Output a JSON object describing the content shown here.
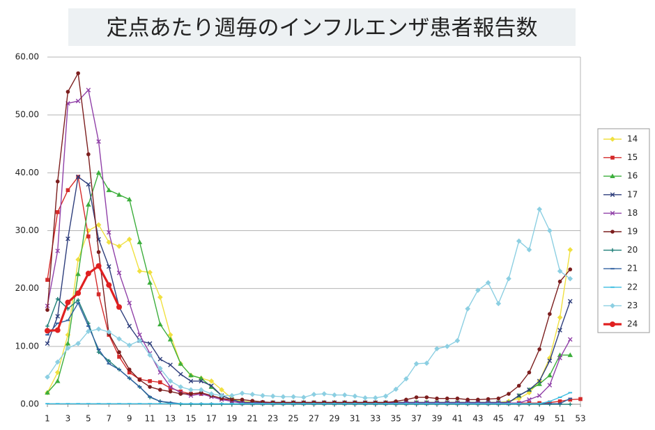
{
  "chart_data": {
    "type": "line",
    "title": "定点あたり週毎のインフルエンザ患者報告数",
    "x": [
      1,
      2,
      3,
      4,
      5,
      6,
      7,
      8,
      9,
      10,
      11,
      12,
      13,
      14,
      15,
      16,
      17,
      18,
      19,
      20,
      21,
      22,
      23,
      24,
      25,
      26,
      27,
      28,
      29,
      30,
      31,
      32,
      33,
      34,
      35,
      36,
      37,
      38,
      39,
      40,
      41,
      42,
      43,
      44,
      45,
      46,
      47,
      48,
      49,
      50,
      51,
      52,
      53
    ],
    "xlim": [
      1,
      53
    ],
    "xticks": [
      1,
      3,
      5,
      7,
      9,
      11,
      13,
      15,
      17,
      19,
      21,
      23,
      25,
      27,
      29,
      31,
      33,
      35,
      37,
      39,
      41,
      43,
      45,
      47,
      49,
      51,
      53
    ],
    "ylim": [
      0,
      60
    ],
    "yticks": [
      {
        "value": 0,
        "label": "0.00"
      },
      {
        "value": 10,
        "label": "10.00"
      },
      {
        "value": 20,
        "label": "20.00"
      },
      {
        "value": 30,
        "label": "30.00"
      },
      {
        "value": 40,
        "label": "40.00"
      },
      {
        "value": 50,
        "label": "50.00"
      },
      {
        "value": 60,
        "label": "60.00"
      }
    ],
    "grid": true,
    "legend": "right",
    "series": [
      {
        "name": "14",
        "color": "#f0e040",
        "marker": "diamond",
        "values": [
          2,
          5.5,
          12,
          25,
          30,
          31,
          28,
          27.3,
          28.5,
          23,
          22.8,
          18.5,
          12,
          7,
          5,
          4.5,
          4,
          2.5,
          1,
          0.5,
          0.4,
          0.3,
          0.3,
          0.3,
          0.3,
          0.3,
          0.3,
          0.3,
          0.3,
          0.3,
          0.3,
          0.3,
          0.3,
          0.3,
          0.3,
          0.3,
          0.3,
          0.3,
          0.3,
          0.3,
          0.3,
          0.3,
          0.3,
          0.3,
          0.3,
          0.5,
          1,
          2,
          4,
          8,
          15,
          26.7,
          null
        ]
      },
      {
        "name": "15",
        "color": "#d42a2a",
        "marker": "square",
        "values": [
          21.5,
          33.2,
          37,
          39.3,
          29,
          19,
          12,
          8.2,
          5.5,
          4.3,
          4,
          3.8,
          2.8,
          2.2,
          1.8,
          1.8,
          1.5,
          1,
          0.5,
          0.2,
          0.2,
          0.2,
          0.2,
          0.2,
          0.2,
          0.2,
          0.2,
          0.2,
          0.2,
          0.2,
          0.2,
          0.2,
          0.2,
          0.2,
          0.2,
          0.2,
          0.2,
          0.2,
          0.2,
          0.2,
          0.2,
          0.2,
          0.2,
          0.2,
          0.2,
          0.2,
          0.2,
          0.2,
          0.2,
          0.3,
          0.5,
          0.8,
          0.9
        ]
      },
      {
        "name": "16",
        "color": "#3cae3c",
        "marker": "triangle",
        "values": [
          2,
          4,
          10.5,
          22.5,
          34.5,
          40,
          37,
          36.2,
          35.4,
          28,
          21,
          13.8,
          11.2,
          7,
          5,
          4.5,
          3,
          1.5,
          0.8,
          0.3,
          0.3,
          0.3,
          0.3,
          0.3,
          0.3,
          0.3,
          0.3,
          0.3,
          0.3,
          0.3,
          0.3,
          0.3,
          0.3,
          0.3,
          0.3,
          0.3,
          0.3,
          0.3,
          0.3,
          0.3,
          0.3,
          0.3,
          0.3,
          0.3,
          0.3,
          0.3,
          1.5,
          2.5,
          3.5,
          5,
          8.5,
          8.5,
          null
        ]
      },
      {
        "name": "17",
        "color": "#2e3e7c",
        "marker": "x",
        "values": [
          10.5,
          15.2,
          28.6,
          39.3,
          38,
          28.5,
          23.8,
          16.8,
          13.5,
          11,
          10.5,
          7.8,
          6.8,
          5.2,
          4,
          4,
          3.2,
          1.5,
          0.8,
          0.3,
          0.3,
          0.3,
          0.3,
          0.3,
          0.3,
          0.3,
          0.3,
          0.3,
          0.3,
          0.3,
          0.3,
          0.3,
          0.3,
          0.3,
          0.3,
          0.3,
          0.3,
          0.3,
          0.3,
          0.3,
          0.3,
          0.3,
          0.3,
          0.3,
          0.3,
          0.3,
          1.5,
          2.5,
          4,
          7.5,
          12.8,
          17.8,
          null
        ]
      },
      {
        "name": "18",
        "color": "#9040a8",
        "marker": "x",
        "values": [
          17,
          26.5,
          52,
          52.4,
          54.3,
          45.4,
          29.7,
          22.7,
          17.5,
          12,
          8.8,
          5.5,
          3,
          2,
          1.5,
          1.8,
          1.3,
          0.8,
          0.5,
          0.2,
          0.2,
          0.2,
          0.2,
          0.2,
          0.2,
          0.2,
          0.2,
          0.2,
          0.2,
          0.2,
          0.2,
          0.2,
          0.2,
          0.2,
          0.2,
          0.2,
          0.2,
          0.2,
          0.2,
          0.2,
          0.2,
          0.2,
          0.2,
          0.2,
          0.2,
          0.2,
          0.2,
          0.8,
          1.5,
          3.3,
          8,
          11.2,
          null
        ]
      },
      {
        "name": "19",
        "color": "#7c1e1e",
        "marker": "circle",
        "values": [
          16.3,
          38.5,
          54,
          57.2,
          43.2,
          26.3,
          12.2,
          9,
          6,
          4.2,
          3,
          2.5,
          2.2,
          1.8,
          1.8,
          2,
          1.5,
          1,
          0.8,
          0.8,
          0.6,
          0.4,
          0.3,
          0.3,
          0.3,
          0.3,
          0.3,
          0.3,
          0.3,
          0.3,
          0.3,
          0.3,
          0.3,
          0.3,
          0.5,
          0.8,
          1.2,
          1.2,
          1,
          1,
          1,
          0.8,
          0.8,
          0.9,
          1,
          1.8,
          3.2,
          5.5,
          9.5,
          15.6,
          21.2,
          23.3,
          null
        ]
      },
      {
        "name": "20",
        "color": "#1f7f78",
        "marker": "plus",
        "values": [
          13.5,
          18.2,
          16.5,
          18,
          14,
          9,
          7.5,
          6,
          4.5,
          3,
          1.2,
          0.5,
          0.2,
          0,
          0,
          0,
          0,
          0,
          0,
          0,
          0,
          0,
          0,
          0,
          0,
          0,
          0,
          0,
          0,
          0,
          0,
          0,
          0,
          0,
          0,
          0,
          0,
          0,
          0,
          0,
          0,
          0,
          0,
          0,
          0,
          0,
          0,
          0,
          0,
          0,
          0,
          0,
          null
        ]
      },
      {
        "name": "21",
        "color": "#3060a0",
        "marker": "dash",
        "values": [
          12,
          14,
          14.5,
          17.5,
          13.5,
          9.5,
          7,
          6,
          4.5,
          3,
          1.3,
          0.5,
          0.3,
          0.1,
          0.1,
          0.1,
          0.1,
          0.1,
          0.1,
          0.1,
          0.1,
          0.1,
          0.1,
          0.1,
          0.1,
          0.1,
          0.1,
          0.1,
          0.1,
          0.1,
          0.1,
          0.1,
          0.1,
          0.1,
          0.1,
          0.1,
          0.1,
          0.1,
          0.1,
          0.1,
          0.1,
          0.1,
          0.1,
          0.1,
          0.1,
          0.1,
          0.1,
          0.1,
          0.1,
          0.1,
          0.1,
          1,
          null
        ]
      },
      {
        "name": "22",
        "color": "#3cbce0",
        "marker": "dash",
        "values": [
          0.1,
          0.1,
          0.1,
          0.1,
          0.1,
          0.1,
          0.1,
          0.1,
          0.1,
          0.1,
          0.1,
          0.1,
          0.1,
          0.1,
          0.1,
          0.1,
          0.1,
          0.1,
          0.1,
          0.1,
          0.1,
          0.1,
          0.1,
          0.1,
          0.1,
          0.1,
          0.1,
          0.1,
          0.1,
          0.1,
          0.1,
          0.1,
          0.1,
          0.1,
          0.1,
          0.1,
          0.1,
          0.1,
          0.1,
          0.1,
          0.1,
          0.1,
          0.1,
          0.1,
          0.1,
          0.1,
          0.1,
          0.1,
          0.1,
          0.5,
          1.2,
          2,
          null
        ]
      },
      {
        "name": "23",
        "color": "#8ccfe2",
        "marker": "diamond",
        "values": [
          4.7,
          7.3,
          9.7,
          10.5,
          12.6,
          13,
          12.5,
          11.3,
          10.2,
          11,
          8.5,
          6.2,
          4,
          3,
          2.5,
          2.5,
          1.8,
          1.5,
          1.5,
          1.9,
          1.7,
          1.5,
          1.4,
          1.3,
          1.3,
          1.2,
          1.7,
          1.8,
          1.6,
          1.6,
          1.4,
          1.1,
          1.1,
          1.4,
          2.6,
          4.4,
          7,
          7.1,
          9.6,
          10,
          11,
          16.5,
          19.7,
          21,
          17.4,
          21.7,
          28.2,
          26.7,
          33.7,
          30,
          23,
          21.7,
          null
        ]
      },
      {
        "name": "24",
        "color": "#e02020",
        "marker": "circle",
        "bold": true,
        "values": [
          12.7,
          12.8,
          17.6,
          19.2,
          22.6,
          23.9,
          20.6,
          16.8,
          null,
          null,
          null,
          null,
          null,
          null,
          null,
          null,
          null,
          null,
          null,
          null,
          null,
          null,
          null,
          null,
          null,
          null,
          null,
          null,
          null,
          null,
          null,
          null,
          null,
          null,
          null,
          null,
          null,
          null,
          null,
          null,
          null,
          null,
          null,
          null,
          null,
          null,
          null,
          null,
          null,
          null,
          null,
          null,
          null
        ]
      }
    ]
  }
}
